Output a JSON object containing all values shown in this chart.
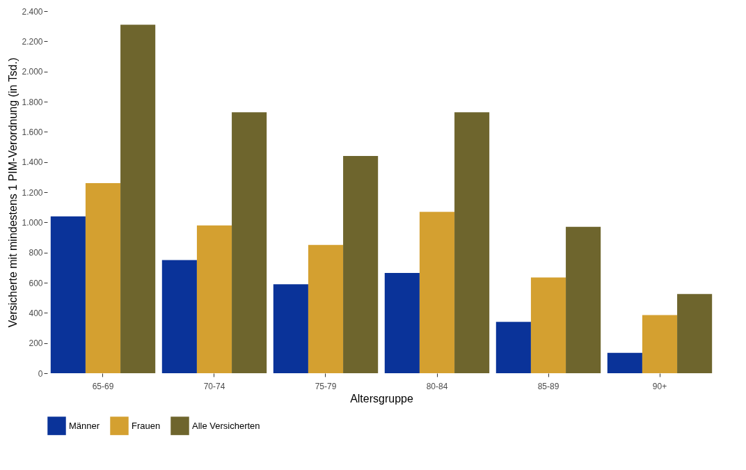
{
  "chart_data": {
    "type": "bar",
    "xlabel": "Altersgruppe",
    "ylabel": "Versicherte mit mindestens 1 PIM-Verordnung (in Tsd.)",
    "categories": [
      "65-69",
      "70-74",
      "75-79",
      "80-84",
      "85-89",
      "90+"
    ],
    "series": [
      {
        "name": "Männer",
        "color": "#0a3399",
        "values": [
          1040,
          750,
          590,
          665,
          340,
          135
        ]
      },
      {
        "name": "Frauen",
        "color": "#d4a030",
        "values": [
          1260,
          980,
          850,
          1070,
          635,
          385
        ]
      },
      {
        "name": "Alle Versicherten",
        "color": "#6e652d",
        "values": [
          2310,
          1730,
          1440,
          1730,
          970,
          525
        ]
      }
    ],
    "ylim": [
      0,
      2400
    ],
    "yticks": [
      0,
      200,
      400,
      600,
      800,
      {
        "value": 1000,
        "label": "1.000"
      },
      {
        "value": 1200,
        "label": "1.200"
      },
      {
        "value": 1400,
        "label": "1.400"
      },
      {
        "value": 1600,
        "label": "1.600"
      },
      {
        "value": 1800,
        "label": "1.800"
      },
      {
        "value": 2000,
        "label": "2.000"
      },
      {
        "value": 2200,
        "label": "2.200"
      },
      {
        "value": 2400,
        "label": "2.400"
      }
    ],
    "grid": false,
    "legend": "bottom"
  }
}
